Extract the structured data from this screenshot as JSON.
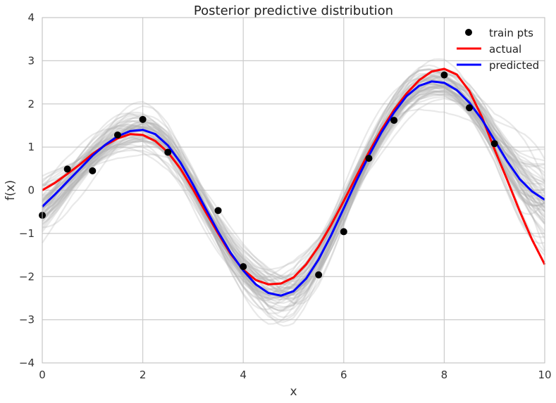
{
  "chart_data": {
    "type": "line",
    "title": "Posterior predictive distribution",
    "xlabel": "x",
    "ylabel": "f(x)",
    "xlim": [
      0,
      10
    ],
    "ylim": [
      -4,
      4
    ],
    "xticks": [
      0,
      2,
      4,
      6,
      8,
      10
    ],
    "xtick_labels": [
      "0",
      "2",
      "4",
      "6",
      "8",
      "10"
    ],
    "yticks": [
      -4,
      -3,
      -2,
      -1,
      0,
      1,
      2,
      3,
      4
    ],
    "ytick_labels": [
      "−4",
      "−3",
      "−2",
      "−1",
      "0",
      "1",
      "2",
      "3",
      "4"
    ],
    "grid": true,
    "legend_position": "top-right",
    "legend": [
      "train pts",
      "actual",
      "predicted"
    ],
    "colors": {
      "train": "#000000",
      "actual": "#ff0000",
      "predicted": "#0000ff",
      "samples": "#b0b0b0",
      "grid": "#cccccc"
    },
    "series": [
      {
        "name": "train pts",
        "kind": "scatter",
        "x": [
          0,
          0.5,
          1.0,
          1.5,
          2.0,
          2.5,
          3.5,
          4.0,
          5.5,
          6.0,
          6.5,
          7.0,
          8.0,
          8.5,
          9.0
        ],
        "y": [
          -0.58,
          0.49,
          0.45,
          1.28,
          1.64,
          0.88,
          -0.47,
          -1.77,
          -1.96,
          -0.96,
          0.74,
          1.62,
          2.67,
          1.91,
          1.08
        ]
      },
      {
        "name": "actual",
        "kind": "line",
        "x": [
          0,
          0.25,
          0.5,
          0.75,
          1.0,
          1.25,
          1.5,
          1.75,
          2.0,
          2.25,
          2.5,
          2.75,
          3.0,
          3.25,
          3.5,
          3.75,
          4.0,
          4.25,
          4.5,
          4.75,
          5.0,
          5.25,
          5.5,
          5.75,
          6.0,
          6.25,
          6.5,
          6.75,
          7.0,
          7.25,
          7.5,
          7.75,
          8.0,
          8.25,
          8.5,
          8.75,
          9.0,
          9.25,
          9.5,
          9.75,
          10.0
        ],
        "y": [
          0.0,
          0.17,
          0.38,
          0.6,
          0.84,
          1.04,
          1.2,
          1.3,
          1.28,
          1.14,
          0.88,
          0.5,
          0.02,
          -0.5,
          -1.0,
          -1.48,
          -1.84,
          -2.08,
          -2.18,
          -2.16,
          -2.02,
          -1.72,
          -1.3,
          -0.8,
          -0.25,
          0.32,
          0.88,
          1.4,
          1.86,
          2.24,
          2.55,
          2.75,
          2.81,
          2.68,
          2.3,
          1.7,
          0.95,
          0.25,
          -0.48,
          -1.15,
          -1.72
        ]
      },
      {
        "name": "predicted",
        "kind": "line",
        "x": [
          0,
          0.25,
          0.5,
          0.75,
          1.0,
          1.25,
          1.5,
          1.75,
          2.0,
          2.25,
          2.5,
          2.75,
          3.0,
          3.25,
          3.5,
          3.75,
          4.0,
          4.25,
          4.5,
          4.75,
          5.0,
          5.25,
          5.5,
          5.75,
          6.0,
          6.25,
          6.5,
          6.75,
          7.0,
          7.25,
          7.5,
          7.75,
          8.0,
          8.25,
          8.5,
          8.75,
          9.0,
          9.25,
          9.5,
          9.75,
          10.0
        ],
        "y": [
          -0.38,
          -0.1,
          0.2,
          0.5,
          0.8,
          1.05,
          1.25,
          1.37,
          1.4,
          1.3,
          1.04,
          0.64,
          0.13,
          -0.42,
          -0.96,
          -1.45,
          -1.86,
          -2.18,
          -2.38,
          -2.44,
          -2.34,
          -2.05,
          -1.6,
          -1.04,
          -0.42,
          0.21,
          0.8,
          1.34,
          1.8,
          2.18,
          2.42,
          2.52,
          2.49,
          2.32,
          2.03,
          1.64,
          1.16,
          0.68,
          0.26,
          -0.03,
          -0.22
        ]
      }
    ]
  }
}
